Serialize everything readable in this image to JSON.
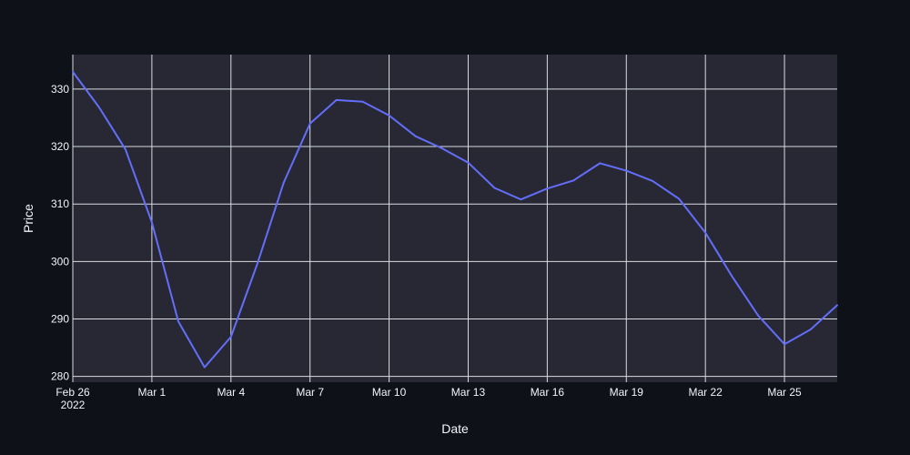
{
  "chart_data": {
    "type": "line",
    "xlabel": "Date",
    "ylabel": "Price",
    "x_range": [
      "2022-02-26",
      "2022-03-27"
    ],
    "ylim": [
      279,
      336
    ],
    "grid": true,
    "legend": "none",
    "x_ticks": [
      {
        "date": "2022-02-26",
        "label": "Feb 26",
        "sublabel": "2022"
      },
      {
        "date": "2022-03-01",
        "label": "Mar 1"
      },
      {
        "date": "2022-03-04",
        "label": "Mar 4"
      },
      {
        "date": "2022-03-07",
        "label": "Mar 7"
      },
      {
        "date": "2022-03-10",
        "label": "Mar 10"
      },
      {
        "date": "2022-03-13",
        "label": "Mar 13"
      },
      {
        "date": "2022-03-16",
        "label": "Mar 16"
      },
      {
        "date": "2022-03-19",
        "label": "Mar 19"
      },
      {
        "date": "2022-03-22",
        "label": "Mar 22"
      },
      {
        "date": "2022-03-25",
        "label": "Mar 25"
      }
    ],
    "y_ticks": [
      280,
      290,
      300,
      310,
      320,
      330
    ],
    "series": [
      {
        "color": "#636efa",
        "x": [
          "2022-02-26",
          "2022-02-27",
          "2022-02-28",
          "2022-03-01",
          "2022-03-02",
          "2022-03-03",
          "2022-03-04",
          "2022-03-05",
          "2022-03-06",
          "2022-03-07",
          "2022-03-08",
          "2022-03-09",
          "2022-03-10",
          "2022-03-11",
          "2022-03-12",
          "2022-03-13",
          "2022-03-14",
          "2022-03-15",
          "2022-03-16",
          "2022-03-17",
          "2022-03-18",
          "2022-03-19",
          "2022-03-20",
          "2022-03-21",
          "2022-03-22",
          "2022-03-23",
          "2022-03-24",
          "2022-03-25",
          "2022-03-26",
          "2022-03-27"
        ],
        "y": [
          333.0,
          326.8,
          319.5,
          306.8,
          289.6,
          281.6,
          286.9,
          299.6,
          313.7,
          324.0,
          328.1,
          327.8,
          325.4,
          321.8,
          319.7,
          317.2,
          312.8,
          310.8,
          312.7,
          314.1,
          317.1,
          315.8,
          314.0,
          310.9,
          305.0,
          297.5,
          290.6,
          285.6,
          288.2,
          292.4
        ]
      }
    ]
  },
  "colors": {
    "page_background": "#0e1118",
    "plot_background": "#272833",
    "grid": "#d9dce3",
    "text": "#f2f5fa"
  }
}
